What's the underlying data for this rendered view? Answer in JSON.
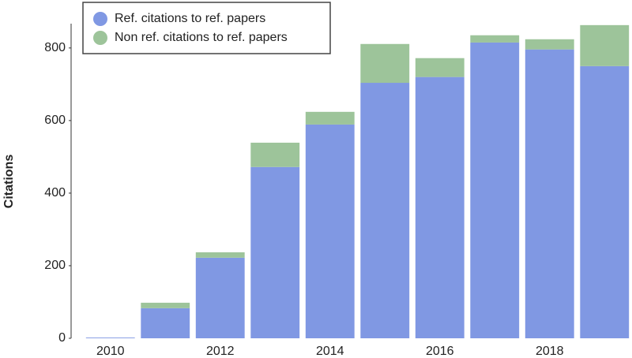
{
  "chart_data": {
    "type": "stacked-bar",
    "y_label": "Citations",
    "x": [
      2010,
      2011,
      2012,
      2013,
      2014,
      2015,
      2016,
      2017,
      2018,
      2019
    ],
    "xlim": [
      2009.5,
      2019.5
    ],
    "xticks": [
      2010,
      2012,
      2014,
      2016,
      2018
    ],
    "ylim": [
      0,
      867
    ],
    "yticks": [
      0,
      200,
      400,
      600,
      800
    ],
    "legend": "upper-left",
    "series": [
      {
        "name": "Ref. citations to ref. papers",
        "color": "#8098e3",
        "values": [
          2,
          83,
          222,
          472,
          589,
          704,
          720,
          815,
          796,
          750
        ]
      },
      {
        "name": "Non ref. citations to ref. papers",
        "color": "#9dc49a",
        "values": [
          0,
          15,
          15,
          67,
          35,
          107,
          52,
          20,
          28,
          113
        ]
      }
    ]
  }
}
